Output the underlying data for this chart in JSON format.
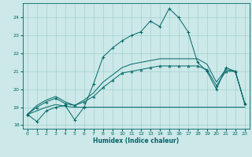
{
  "xlabel": "Humidex (Indice chaleur)",
  "ylabel": "",
  "xlim": [
    -0.5,
    23.5
  ],
  "ylim": [
    17.8,
    24.8
  ],
  "yticks": [
    18,
    19,
    20,
    21,
    22,
    23,
    24
  ],
  "xticks": [
    0,
    1,
    2,
    3,
    4,
    5,
    6,
    7,
    8,
    9,
    10,
    11,
    12,
    13,
    14,
    15,
    16,
    17,
    18,
    19,
    20,
    21,
    22,
    23
  ],
  "bg_color": "#cce8e8",
  "grid_color": "#99cccc",
  "line_color": "#006666",
  "line1_x": [
    0,
    1,
    2,
    3,
    4,
    5,
    6,
    7,
    8,
    9,
    10,
    11,
    12,
    13,
    14,
    15,
    16,
    17,
    18,
    19,
    20,
    21,
    22,
    23
  ],
  "line1_y": [
    18.6,
    18.2,
    18.8,
    19.0,
    19.1,
    18.3,
    19.0,
    20.3,
    21.8,
    22.3,
    22.7,
    23.0,
    23.2,
    23.8,
    23.5,
    24.5,
    24.0,
    23.2,
    21.5,
    21.0,
    20.0,
    21.2,
    21.0,
    19.2
  ],
  "line2_x": [
    0,
    1,
    2,
    3,
    4,
    5,
    6,
    7,
    8,
    9,
    10,
    11,
    12,
    13,
    14,
    15,
    16,
    17,
    18,
    19,
    20,
    21,
    22,
    23
  ],
  "line2_y": [
    18.6,
    18.8,
    19.0,
    19.15,
    19.05,
    19.0,
    19.0,
    19.0,
    19.0,
    19.0,
    19.0,
    19.0,
    19.0,
    19.0,
    19.0,
    19.0,
    19.0,
    19.0,
    19.0,
    19.0,
    19.0,
    19.0,
    19.0,
    19.0
  ],
  "line3_x": [
    0,
    1,
    2,
    3,
    4,
    5,
    6,
    7,
    8,
    9,
    10,
    11,
    12,
    13,
    14,
    15,
    16,
    17,
    18,
    19,
    20,
    21,
    22,
    23
  ],
  "line3_y": [
    18.6,
    19.0,
    19.3,
    19.5,
    19.2,
    19.1,
    19.3,
    19.6,
    20.1,
    20.5,
    20.9,
    21.0,
    21.1,
    21.2,
    21.3,
    21.3,
    21.3,
    21.3,
    21.3,
    21.1,
    20.2,
    21.0,
    21.0,
    19.2
  ],
  "line4_x": [
    0,
    1,
    2,
    3,
    4,
    5,
    6,
    7,
    8,
    9,
    10,
    11,
    12,
    13,
    14,
    15,
    16,
    17,
    18,
    19,
    20,
    21,
    22,
    23
  ],
  "line4_y": [
    18.6,
    19.1,
    19.4,
    19.6,
    19.3,
    19.1,
    19.4,
    19.8,
    20.4,
    20.8,
    21.2,
    21.4,
    21.5,
    21.6,
    21.7,
    21.7,
    21.7,
    21.7,
    21.7,
    21.4,
    20.4,
    21.1,
    21.0,
    19.2
  ]
}
